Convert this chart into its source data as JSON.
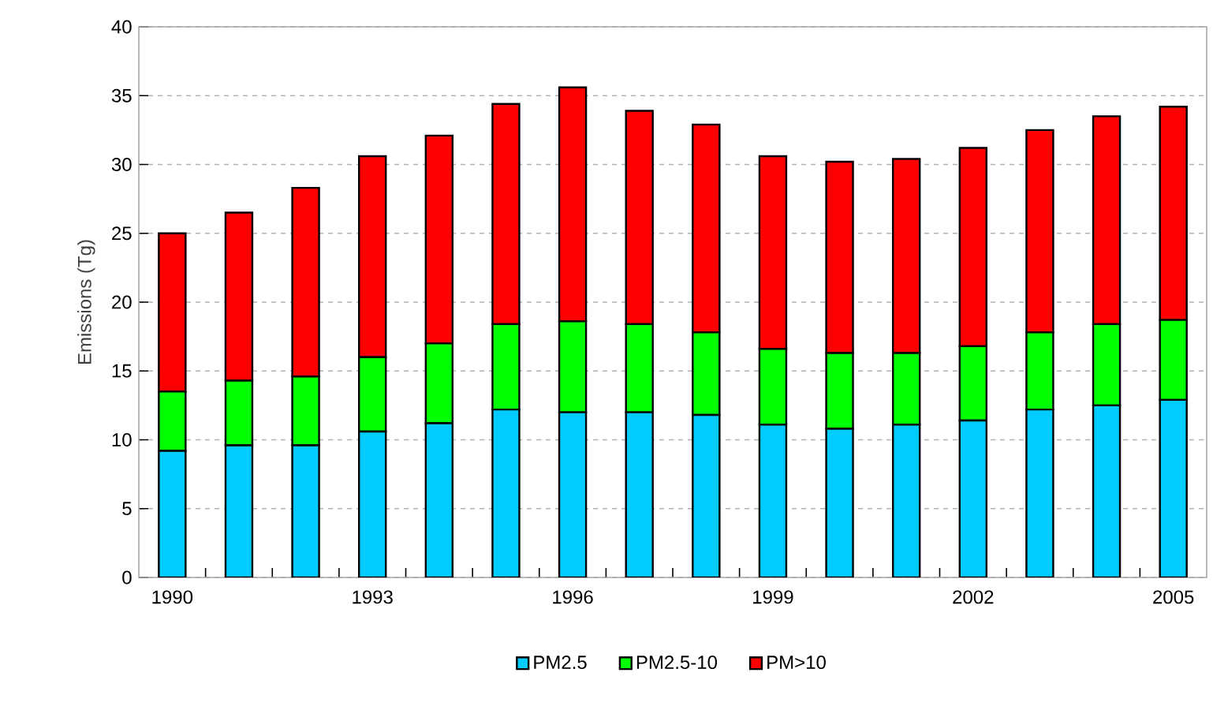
{
  "chart_data": {
    "type": "bar",
    "stacked": true,
    "ylabel": "Emissions (Tg)",
    "categories": [
      "1990",
      null,
      null,
      "1993",
      null,
      null,
      "1996",
      null,
      null,
      "1999",
      null,
      null,
      "2002",
      null,
      null,
      "2005"
    ],
    "series": [
      {
        "name": "PM2.5",
        "color": "#00ccff",
        "values": [
          9.2,
          9.6,
          9.6,
          10.6,
          11.2,
          12.2,
          12.0,
          12.0,
          11.8,
          11.1,
          10.8,
          11.1,
          11.4,
          12.2,
          12.5,
          12.9
        ]
      },
      {
        "name": "PM2.5-10",
        "color": "#00ff00",
        "values": [
          4.3,
          4.7,
          5.0,
          5.4,
          5.8,
          6.2,
          6.6,
          6.4,
          6.0,
          5.5,
          5.5,
          5.2,
          5.4,
          5.6,
          5.9,
          5.8
        ]
      },
      {
        "name": "PM>10",
        "color": "#ff0000",
        "values": [
          11.5,
          12.2,
          13.7,
          14.6,
          15.1,
          16.0,
          17.0,
          15.5,
          15.1,
          14.0,
          13.9,
          14.1,
          14.4,
          14.7,
          15.1,
          15.5
        ]
      }
    ],
    "ylim": [
      0,
      40
    ],
    "yticks": [
      0,
      5,
      10,
      15,
      20,
      25,
      30,
      35,
      40
    ],
    "grid": "y",
    "legend": "bottom"
  }
}
